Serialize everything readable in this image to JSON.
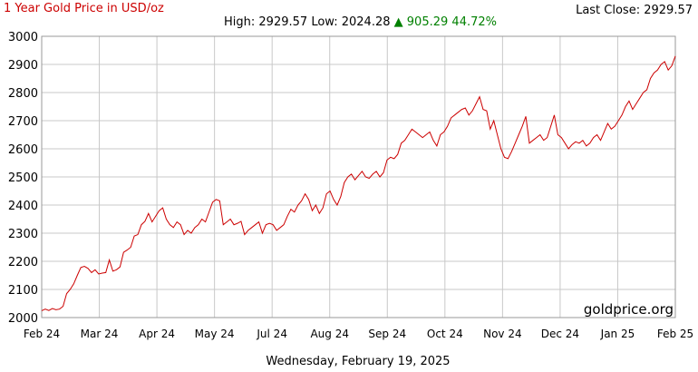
{
  "header": {
    "title": "1 Year Gold Price in USD/oz",
    "last_close_label": "Last Close:",
    "last_close_value": "2929.57",
    "high_label": "High:",
    "high_value": "2929.57",
    "low_label": "Low:",
    "low_value": "2024.28",
    "change_arrow": "▲",
    "change_value": "905.29",
    "change_pct": "44.72%"
  },
  "watermark": "goldprice.org",
  "footer_date": "Wednesday, February 19, 2025",
  "colors": {
    "line": "#cc0000",
    "grid": "#c8c8c8",
    "change": "#008000"
  },
  "chart_data": {
    "type": "line",
    "ylim": [
      2000,
      3000
    ],
    "y_ticks": [
      2000,
      2100,
      2200,
      2300,
      2400,
      2500,
      2600,
      2700,
      2800,
      2900,
      3000
    ],
    "x_tick_labels": [
      "Feb 24",
      "Mar 24",
      "Apr 24",
      "May 24",
      "Jul 24",
      "Aug 24",
      "Sep 24",
      "Oct 24",
      "Nov 24",
      "Dec 24",
      "Jan 25",
      "Feb 25"
    ],
    "grid": true,
    "series": [
      {
        "values": [
          2024.28,
          2030,
          2025,
          2032,
          2028,
          2030,
          2040,
          2085,
          2100,
          2120,
          2150,
          2178,
          2182,
          2175,
          2160,
          2170,
          2155,
          2158,
          2160,
          2205,
          2165,
          2170,
          2180,
          2232,
          2240,
          2250,
          2290,
          2295,
          2330,
          2342,
          2370,
          2340,
          2360,
          2380,
          2390,
          2350,
          2330,
          2320,
          2340,
          2330,
          2295,
          2310,
          2300,
          2320,
          2330,
          2350,
          2340,
          2375,
          2410,
          2420,
          2415,
          2330,
          2340,
          2350,
          2330,
          2335,
          2342,
          2295,
          2310,
          2320,
          2330,
          2340,
          2300,
          2330,
          2335,
          2330,
          2310,
          2320,
          2330,
          2360,
          2385,
          2375,
          2400,
          2415,
          2440,
          2420,
          2380,
          2400,
          2370,
          2390,
          2440,
          2450,
          2420,
          2400,
          2430,
          2480,
          2500,
          2510,
          2490,
          2505,
          2520,
          2500,
          2495,
          2510,
          2520,
          2500,
          2515,
          2560,
          2570,
          2565,
          2580,
          2620,
          2630,
          2650,
          2670,
          2660,
          2650,
          2640,
          2650,
          2660,
          2630,
          2610,
          2650,
          2660,
          2680,
          2710,
          2720,
          2730,
          2740,
          2745,
          2720,
          2735,
          2760,
          2785,
          2740,
          2735,
          2670,
          2700,
          2650,
          2600,
          2570,
          2565,
          2590,
          2620,
          2650,
          2680,
          2715,
          2620,
          2630,
          2640,
          2650,
          2630,
          2640,
          2680,
          2720,
          2650,
          2640,
          2620,
          2600,
          2615,
          2625,
          2620,
          2630,
          2610,
          2620,
          2640,
          2650,
          2630,
          2660,
          2690,
          2670,
          2680,
          2700,
          2720,
          2750,
          2770,
          2740,
          2760,
          2780,
          2800,
          2810,
          2850,
          2870,
          2880,
          2900,
          2910,
          2880,
          2895,
          2929.57
        ]
      }
    ]
  }
}
